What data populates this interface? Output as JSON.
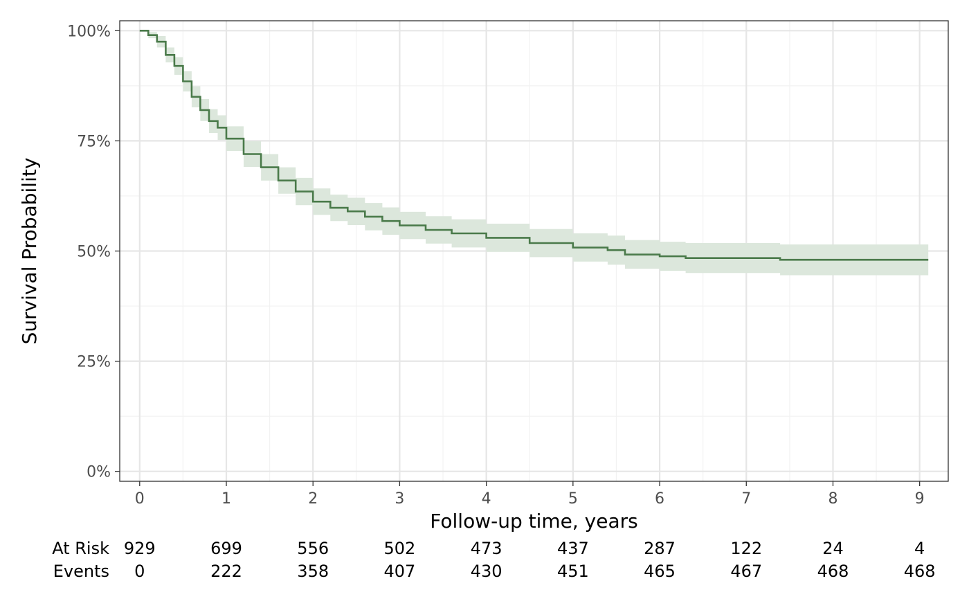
{
  "chart_data": {
    "type": "line",
    "title": "",
    "xlabel": "Follow-up time, years",
    "ylabel": "Survival Probability",
    "xlim": [
      -0.23,
      9.33
    ],
    "ylim": [
      -0.0225,
      1.0225
    ],
    "grid": true,
    "x_ticks": [
      0,
      1,
      2,
      3,
      4,
      5,
      6,
      7,
      8,
      9
    ],
    "x_tick_labels": [
      "0",
      "1",
      "2",
      "3",
      "4",
      "5",
      "6",
      "7",
      "8",
      "9"
    ],
    "y_ticks": [
      0,
      0.25,
      0.5,
      0.75,
      1.0
    ],
    "y_tick_labels": [
      "0%",
      "25%",
      "50%",
      "75%",
      "100%"
    ],
    "colors": {
      "line": "#4a7a4a",
      "band": "#dce7dc",
      "grid_major": "#e6e6e6",
      "grid_minor": "#f2f2f2",
      "panel_border": "#333333"
    },
    "series": [
      {
        "x": [
          0,
          0.1,
          0.2,
          0.3,
          0.4,
          0.5,
          0.6,
          0.7,
          0.8,
          0.9,
          1.0,
          1.2,
          1.4,
          1.6,
          1.8,
          2.0,
          2.2,
          2.4,
          2.6,
          2.8,
          3.0,
          3.3,
          3.6,
          4.0,
          4.5,
          5.0,
          5.4,
          5.6,
          6.0,
          6.3,
          7.0,
          7.38,
          7.39,
          8.0,
          9.1
        ],
        "y": [
          1.0,
          0.99,
          0.975,
          0.945,
          0.92,
          0.885,
          0.85,
          0.82,
          0.795,
          0.78,
          0.755,
          0.72,
          0.69,
          0.66,
          0.635,
          0.612,
          0.598,
          0.59,
          0.578,
          0.568,
          0.558,
          0.548,
          0.54,
          0.53,
          0.518,
          0.508,
          0.502,
          0.492,
          0.488,
          0.484,
          0.484,
          0.484,
          0.48,
          0.48,
          0.48
        ],
        "lower": [
          1.0,
          0.983,
          0.962,
          0.928,
          0.9,
          0.862,
          0.826,
          0.795,
          0.768,
          0.752,
          0.727,
          0.691,
          0.66,
          0.63,
          0.604,
          0.582,
          0.568,
          0.559,
          0.547,
          0.537,
          0.527,
          0.517,
          0.508,
          0.498,
          0.486,
          0.476,
          0.469,
          0.46,
          0.455,
          0.45,
          0.45,
          0.45,
          0.445,
          0.445,
          0.445
        ],
        "upper": [
          1.0,
          0.997,
          0.988,
          0.962,
          0.94,
          0.908,
          0.874,
          0.845,
          0.822,
          0.808,
          0.783,
          0.749,
          0.72,
          0.69,
          0.666,
          0.642,
          0.628,
          0.621,
          0.609,
          0.599,
          0.589,
          0.579,
          0.572,
          0.562,
          0.55,
          0.54,
          0.535,
          0.525,
          0.521,
          0.518,
          0.518,
          0.518,
          0.515,
          0.515,
          0.515
        ]
      }
    ],
    "risk_table": {
      "times": [
        0,
        1,
        2,
        3,
        4,
        5,
        6,
        7,
        8,
        9
      ],
      "rows": [
        {
          "label": "At Risk",
          "values": [
            929,
            699,
            556,
            502,
            473,
            437,
            287,
            122,
            24,
            4
          ]
        },
        {
          "label": "Events",
          "values": [
            0,
            222,
            358,
            407,
            430,
            451,
            465,
            467,
            468,
            468
          ]
        }
      ]
    }
  }
}
